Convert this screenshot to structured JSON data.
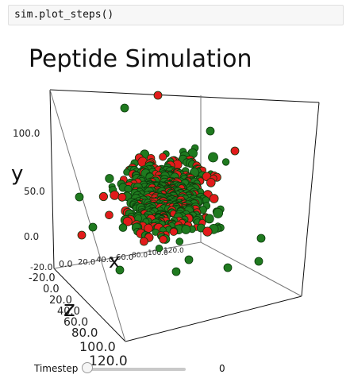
{
  "code_cell": {
    "text": "sim.plot_steps()"
  },
  "plot": {
    "title": "Peptide Simulation",
    "colors": {
      "green": "#1f7a1f",
      "red": "#e21b1b",
      "outline": "#0a3a0a"
    },
    "axes": {
      "x": {
        "label": "x",
        "ticks": [
          "-20.0",
          "0.0",
          "20.0",
          "40.0",
          "60.0",
          "80.0",
          "100.0",
          "120.0"
        ]
      },
      "y": {
        "label": "y",
        "ticks": [
          "0.0",
          "50.0",
          "100.0"
        ]
      },
      "z": {
        "label": "z",
        "ticks": [
          "-20.0",
          "0.0",
          "20.0",
          "40.0",
          "60.0",
          "80.0",
          "100.0",
          "120.0"
        ]
      }
    }
  },
  "slider": {
    "label": "Timestep",
    "value": 0,
    "min": 0
  }
}
